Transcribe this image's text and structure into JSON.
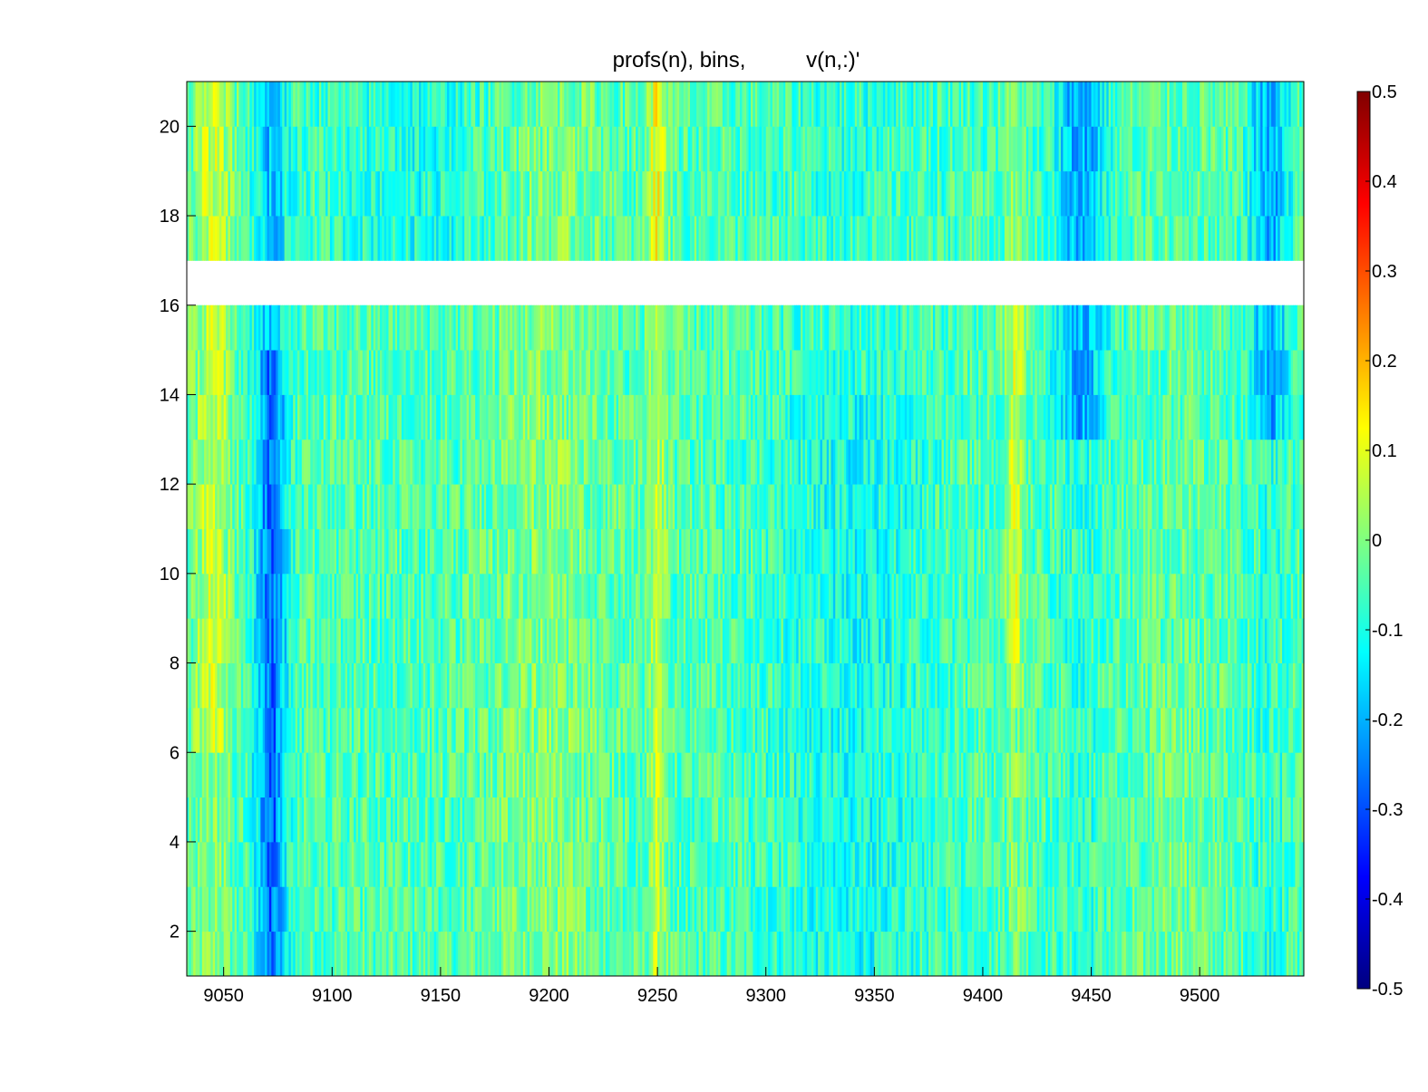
{
  "chart_data": {
    "type": "heatmap",
    "title": "profs(n), bins,          v(n,:)'",
    "xlabel": "",
    "ylabel": "",
    "x_range": [
      9033,
      9548
    ],
    "y_range": [
      1,
      21
    ],
    "x_ticks": [
      9050,
      9100,
      9150,
      9200,
      9250,
      9300,
      9350,
      9400,
      9450,
      9500
    ],
    "y_ticks": [
      2,
      4,
      6,
      8,
      10,
      12,
      14,
      16,
      18,
      20
    ],
    "colormap": "jet",
    "clim": [
      -0.5,
      0.5
    ],
    "colorbar_ticks": [
      -0.5,
      -0.4,
      -0.3,
      -0.2,
      -0.1,
      0,
      0.1,
      0.2,
      0.3,
      0.4,
      0.5
    ],
    "colorbar_labels": [
      "-0.5",
      "-0.4",
      "-0.3",
      "-0.2",
      "-0.1",
      "0",
      "0.1",
      "0.2",
      "0.3",
      "0.4",
      "0.5"
    ],
    "missing_rows": [
      16
    ],
    "grid": false,
    "notable_features": [
      {
        "x": 9072,
        "value": -0.3,
        "note": "strong negative band at low bins"
      },
      {
        "x": 9250,
        "value": 0.2,
        "note": "positive band near upper bins"
      },
      {
        "x": 9415,
        "value": 0.15,
        "note": "positive band at mid bins"
      },
      {
        "x": 9445,
        "value": -0.25,
        "note": "negative band at upper bins"
      },
      {
        "x": 9530,
        "value": -0.25,
        "note": "negative band at upper bins"
      }
    ]
  }
}
